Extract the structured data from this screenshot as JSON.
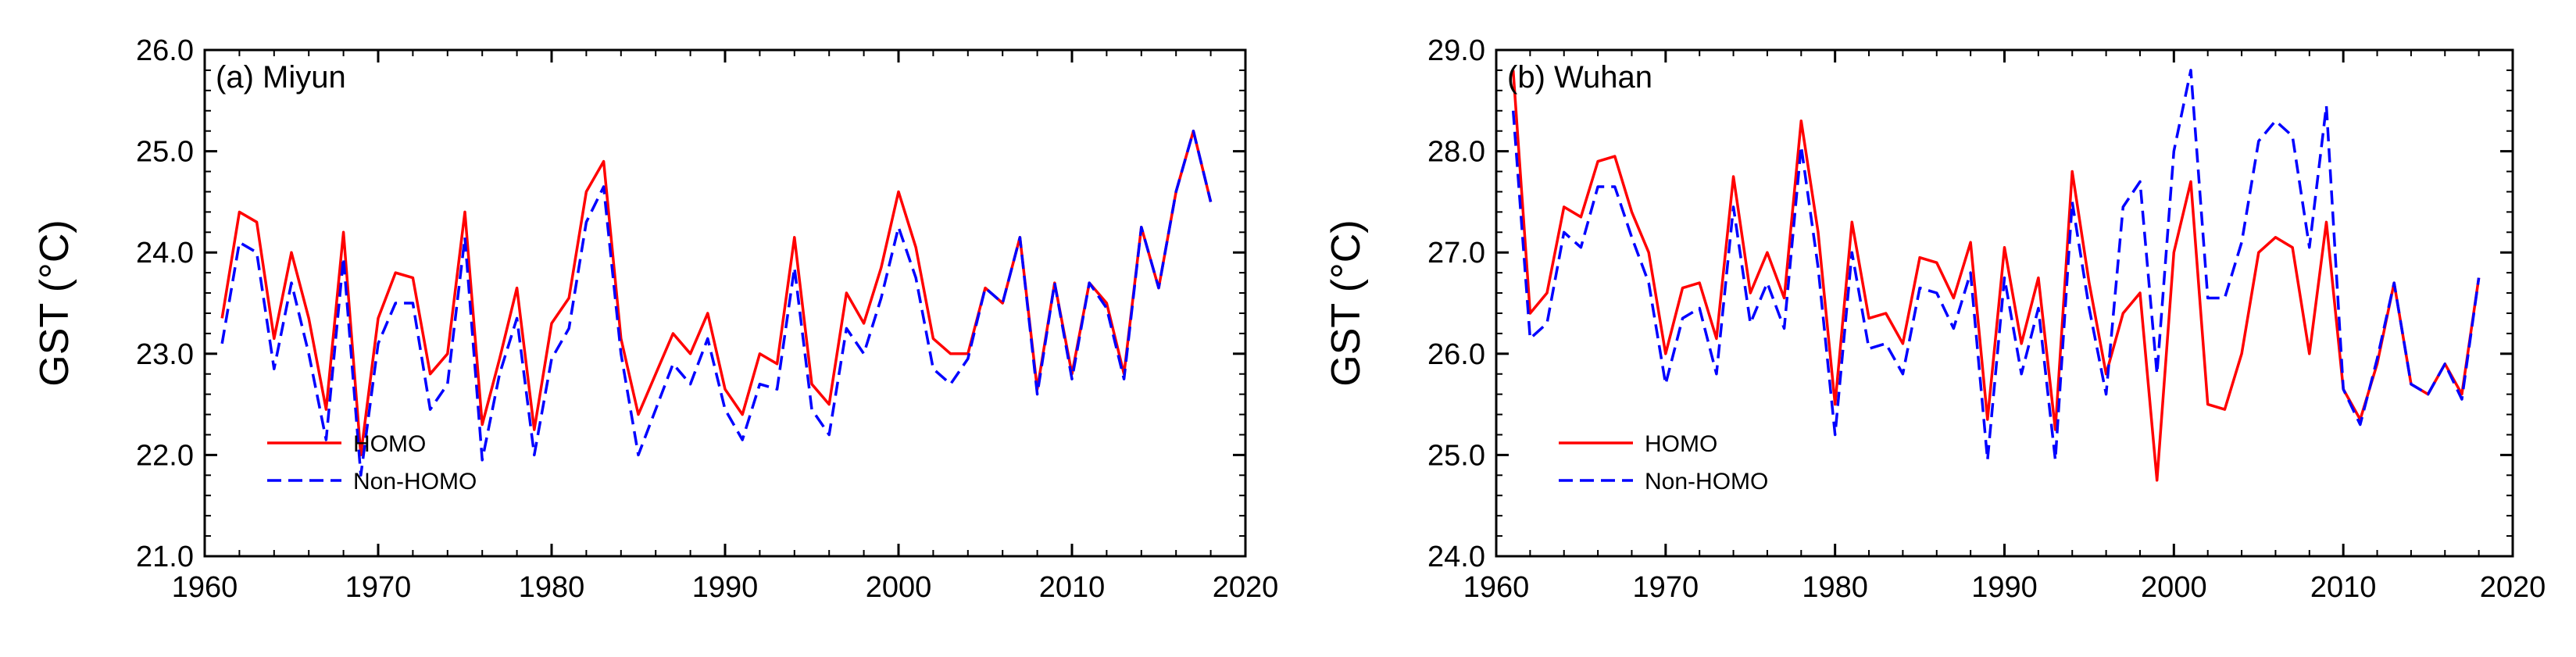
{
  "figure": {
    "background": "#ffffff"
  },
  "chart_data": [
    {
      "type": "line",
      "title": "(a) Miyun",
      "xlabel": "",
      "ylabel": "GST (°C)",
      "xlim": [
        1960,
        2020
      ],
      "ylim": [
        21.0,
        26.0
      ],
      "xticks": [
        1960,
        1970,
        1980,
        1990,
        2000,
        2010,
        2020
      ],
      "xtick_labels": [
        "1960",
        "1970",
        "1980",
        "1990",
        "2000",
        "2010",
        "2020"
      ],
      "yticks": [
        21.0,
        22.0,
        23.0,
        24.0,
        25.0,
        26.0
      ],
      "ytick_labels": [
        "21.0",
        "22.0",
        "23.0",
        "24.0",
        "25.0",
        "26.0"
      ],
      "legend_position": "bottom-left",
      "x": [
        1961,
        1962,
        1963,
        1964,
        1965,
        1966,
        1967,
        1968,
        1969,
        1970,
        1971,
        1972,
        1973,
        1974,
        1975,
        1976,
        1977,
        1978,
        1979,
        1980,
        1981,
        1982,
        1983,
        1984,
        1985,
        1986,
        1987,
        1988,
        1989,
        1990,
        1991,
        1992,
        1993,
        1994,
        1995,
        1996,
        1997,
        1998,
        1999,
        2000,
        2001,
        2002,
        2003,
        2004,
        2005,
        2006,
        2007,
        2008,
        2009,
        2010,
        2011,
        2012,
        2013,
        2014,
        2015,
        2016,
        2017,
        2018
      ],
      "series": [
        {
          "name": "HOMO",
          "color": "#ff0000",
          "dash": "solid",
          "values": [
            23.35,
            24.4,
            24.3,
            23.15,
            24.0,
            23.35,
            22.45,
            24.2,
            22.0,
            23.35,
            23.8,
            23.75,
            22.8,
            23.0,
            24.4,
            22.3,
            22.95,
            23.65,
            22.25,
            23.3,
            23.55,
            24.6,
            24.9,
            23.15,
            22.4,
            22.8,
            23.2,
            23.0,
            23.4,
            22.65,
            22.4,
            23.0,
            22.9,
            24.15,
            22.7,
            22.5,
            23.6,
            23.3,
            23.85,
            24.6,
            24.05,
            23.15,
            23.0,
            23.0,
            23.65,
            23.5,
            24.15,
            22.65,
            23.7,
            22.8,
            23.7,
            23.5,
            22.8,
            24.25,
            23.65,
            24.6,
            25.2,
            24.5
          ]
        },
        {
          "name": "Non-HOMO",
          "color": "#0000ff",
          "dash": "dashed",
          "values": [
            23.1,
            24.1,
            24.0,
            22.85,
            23.7,
            23.0,
            22.15,
            23.95,
            21.8,
            23.1,
            23.5,
            23.5,
            22.45,
            22.7,
            24.15,
            21.95,
            22.8,
            23.35,
            22.0,
            22.95,
            23.25,
            24.3,
            24.65,
            23.0,
            22.0,
            22.45,
            22.9,
            22.7,
            23.15,
            22.45,
            22.15,
            22.7,
            22.65,
            23.85,
            22.45,
            22.2,
            23.25,
            23.0,
            23.55,
            24.25,
            23.75,
            22.85,
            22.7,
            22.95,
            23.65,
            23.5,
            24.15,
            22.6,
            23.7,
            22.75,
            23.7,
            23.45,
            22.75,
            24.25,
            23.65,
            24.6,
            25.2,
            24.5
          ]
        }
      ]
    },
    {
      "type": "line",
      "title": "(b) Wuhan",
      "xlabel": "",
      "ylabel": "GST (°C)",
      "xlim": [
        1960,
        2020
      ],
      "ylim": [
        24.0,
        29.0
      ],
      "xticks": [
        1960,
        1970,
        1980,
        1990,
        2000,
        2010,
        2020
      ],
      "xtick_labels": [
        "1960",
        "1970",
        "1980",
        "1990",
        "2000",
        "2010",
        "2020"
      ],
      "yticks": [
        24.0,
        25.0,
        26.0,
        27.0,
        28.0,
        29.0
      ],
      "ytick_labels": [
        "24.0",
        "25.0",
        "26.0",
        "27.0",
        "28.0",
        "29.0"
      ],
      "legend_position": "bottom-left",
      "x": [
        1961,
        1962,
        1963,
        1964,
        1965,
        1966,
        1967,
        1968,
        1969,
        1970,
        1971,
        1972,
        1973,
        1974,
        1975,
        1976,
        1977,
        1978,
        1979,
        1980,
        1981,
        1982,
        1983,
        1984,
        1985,
        1986,
        1987,
        1988,
        1989,
        1990,
        1991,
        1992,
        1993,
        1994,
        1995,
        1996,
        1997,
        1998,
        1999,
        2000,
        2001,
        2002,
        2003,
        2004,
        2005,
        2006,
        2007,
        2008,
        2009,
        2010,
        2011,
        2012,
        2013,
        2014,
        2015,
        2016,
        2017,
        2018
      ],
      "series": [
        {
          "name": "HOMO",
          "color": "#ff0000",
          "dash": "solid",
          "values": [
            28.8,
            26.4,
            26.6,
            27.45,
            27.35,
            27.9,
            27.95,
            27.4,
            27.0,
            26.0,
            26.65,
            26.7,
            26.15,
            27.75,
            26.6,
            27.0,
            26.55,
            28.3,
            27.2,
            25.5,
            27.3,
            26.35,
            26.4,
            26.1,
            26.95,
            26.9,
            26.55,
            27.1,
            25.35,
            27.05,
            26.1,
            26.75,
            25.25,
            27.8,
            26.7,
            25.8,
            26.4,
            26.6,
            24.75,
            27.0,
            27.7,
            25.5,
            25.45,
            26.0,
            27.0,
            27.15,
            27.05,
            26.0,
            27.3,
            25.65,
            25.35,
            25.9,
            26.7,
            25.7,
            25.6,
            25.9,
            25.6,
            26.75
          ]
        },
        {
          "name": "Non-HOMO",
          "color": "#0000ff",
          "dash": "dashed",
          "values": [
            28.4,
            26.15,
            26.3,
            27.2,
            27.05,
            27.65,
            27.65,
            27.15,
            26.7,
            25.7,
            26.35,
            26.45,
            25.8,
            27.45,
            26.3,
            26.7,
            26.25,
            28.05,
            26.85,
            25.2,
            27.0,
            26.05,
            26.1,
            25.8,
            26.65,
            26.6,
            26.25,
            26.8,
            24.95,
            26.75,
            25.8,
            26.45,
            24.95,
            27.5,
            26.45,
            25.6,
            27.45,
            27.7,
            25.8,
            28.0,
            28.8,
            26.55,
            26.55,
            27.1,
            28.1,
            28.3,
            28.15,
            27.05,
            28.45,
            25.65,
            25.3,
            25.95,
            26.7,
            25.7,
            25.6,
            25.9,
            25.55,
            26.75
          ]
        }
      ]
    }
  ]
}
